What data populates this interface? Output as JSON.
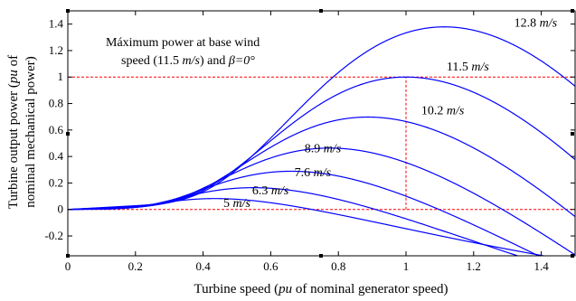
{
  "chart_data": {
    "type": "line",
    "xlabel_parts": [
      "Turbine speed (",
      "pu",
      " of nominal generator speed)"
    ],
    "ylabel_line1_parts": [
      "Turbine output power (",
      "pu",
      " of"
    ],
    "ylabel_line2": "nominal mechanical power)",
    "xlim": [
      0,
      1.5
    ],
    "ylim": [
      -0.35,
      1.5
    ],
    "x_ticks": [
      "0",
      "0.2",
      "0.4",
      "0.6",
      "0.8",
      "1",
      "1.2",
      "1.4"
    ],
    "y_ticks": [
      "-0.2",
      "0",
      "0.2",
      "0.4",
      "0.6",
      "0.8",
      "1",
      "1.2",
      "1.4"
    ],
    "grid": false,
    "annotation": {
      "line1": "Máximum power at base wind",
      "line2_a": "speed (11.5 ",
      "line2_unit": "m/s",
      "line2_b": ") and ",
      "line2_beta": "β=0°"
    },
    "reference_lines": {
      "color": "#ff0000",
      "horizontal_y": [
        1,
        0
      ],
      "vertical": {
        "x": 1,
        "from_y": 0,
        "to_y": 1
      }
    },
    "series_color": "#0000ff",
    "series": [
      {
        "label": "5",
        "unit": "m/s",
        "peak_x": 0.436,
        "peak_y": 0.0819
      },
      {
        "label": "6.3",
        "unit": "m/s",
        "peak_x": 0.55,
        "peak_y": 0.1639
      },
      {
        "label": "7.6",
        "unit": "m/s",
        "peak_x": 0.663,
        "peak_y": 0.2877
      },
      {
        "label": "8.9",
        "unit": "m/s",
        "peak_x": 0.777,
        "peak_y": 0.462
      },
      {
        "label": "10.2",
        "unit": "m/s",
        "peak_x": 0.89,
        "peak_y": 0.6954
      },
      {
        "label": "11.5",
        "unit": "m/s",
        "peak_x": 1.0,
        "peak_y": 1.0
      },
      {
        "label": "12.8",
        "unit": "m/s",
        "peak_x": 1.117,
        "peak_y": 1.379
      }
    ]
  }
}
